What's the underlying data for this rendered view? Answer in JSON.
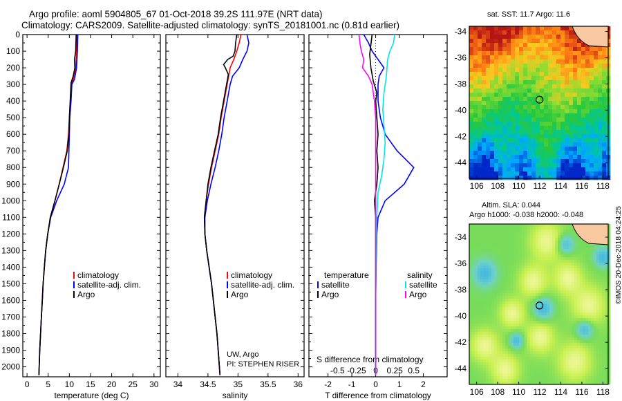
{
  "title_line1": "Argo profile: aoml 5904805_67 01-Oct-2018 39.2S 111.97E (NRT data)",
  "title_line2": "Climatology: CARS2009. Satellite-adjusted climatology: synTS_20181001.nc (0.81d earlier)",
  "sst_title": "sat. SST: 11.7 Argo: 11.6",
  "sla_title1": "Altim. SLA: 0.044",
  "sla_title2": "Argo h1000: -0.038 h2000: -0.048",
  "watermark": "©IMOS 20-Dec-2018 04:24:25",
  "colors": {
    "climatology": "#ff0000",
    "satellite": "#0000ff",
    "argo": "#000000",
    "sal_satellite": "#00e5ee",
    "sal_argo": "#ff00ff"
  },
  "chart_data": [
    {
      "type": "line",
      "name": "temperature_profile",
      "xlabel": "temperature (deg C)",
      "ylabel": "pressure",
      "xlim": [
        -1,
        31.5
      ],
      "ylim": [
        2060,
        0
      ],
      "xticks": [
        "0",
        "5",
        "10",
        "15",
        "20",
        "25",
        "30"
      ],
      "xtick_values": [
        0,
        5,
        10,
        15,
        20,
        25,
        30
      ],
      "yticks": [
        "0",
        "100",
        "200",
        "300",
        "400",
        "500",
        "600",
        "700",
        "800",
        "900",
        "1000",
        "1100",
        "1200",
        "1300",
        "1400",
        "1500",
        "1600",
        "1700",
        "1800",
        "1900",
        "2000"
      ],
      "legend": [
        "climatology",
        "satellite-adj. clim.",
        "Argo"
      ],
      "series": [
        {
          "name": "climatology",
          "color": "#ff0000",
          "points": [
            [
              11.8,
              0
            ],
            [
              11.7,
              100
            ],
            [
              11.5,
              200
            ],
            [
              10.9,
              270
            ],
            [
              10.4,
              300
            ],
            [
              10.2,
              400
            ],
            [
              10.0,
              500
            ],
            [
              9.8,
              600
            ],
            [
              9.4,
              700
            ],
            [
              8.5,
              800
            ],
            [
              7.6,
              900
            ],
            [
              6.6,
              1000
            ],
            [
              5.5,
              1100
            ],
            [
              4.9,
              1200
            ],
            [
              4.4,
              1300
            ],
            [
              4.1,
              1400
            ],
            [
              3.8,
              1500
            ],
            [
              3.6,
              1600
            ],
            [
              3.4,
              1700
            ],
            [
              3.2,
              1800
            ],
            [
              3.0,
              1900
            ],
            [
              2.8,
              2050
            ]
          ]
        },
        {
          "name": "satellite-adj. clim.",
          "color": "#0000ff",
          "points": [
            [
              12.0,
              0
            ],
            [
              11.9,
              100
            ],
            [
              11.7,
              200
            ],
            [
              11.2,
              270
            ],
            [
              10.6,
              300
            ],
            [
              10.4,
              400
            ],
            [
              10.1,
              500
            ],
            [
              10.0,
              600
            ],
            [
              9.9,
              700
            ],
            [
              9.8,
              800
            ],
            [
              8.8,
              900
            ],
            [
              7.0,
              1000
            ],
            [
              5.6,
              1100
            ],
            [
              4.9,
              1200
            ],
            [
              4.4,
              1300
            ],
            [
              4.1,
              1400
            ],
            [
              3.8,
              1500
            ],
            [
              3.6,
              1600
            ],
            [
              3.4,
              1700
            ],
            [
              3.2,
              1800
            ],
            [
              3.0,
              1900
            ],
            [
              2.8,
              2050
            ]
          ]
        },
        {
          "name": "Argo",
          "color": "#000000",
          "points": [
            [
              11.6,
              0
            ],
            [
              11.5,
              100
            ],
            [
              11.2,
              150
            ],
            [
              11.3,
              200
            ],
            [
              10.9,
              250
            ],
            [
              10.4,
              290
            ],
            [
              10.3,
              350
            ],
            [
              10.2,
              400
            ],
            [
              10.0,
              500
            ],
            [
              9.9,
              600
            ],
            [
              9.5,
              700
            ],
            [
              8.6,
              800
            ],
            [
              7.6,
              900
            ],
            [
              6.6,
              1000
            ],
            [
              5.5,
              1100
            ],
            [
              4.9,
              1200
            ],
            [
              4.4,
              1300
            ],
            [
              4.1,
              1400
            ],
            [
              3.8,
              1500
            ],
            [
              3.6,
              1600
            ],
            [
              3.4,
              1700
            ],
            [
              3.2,
              1800
            ],
            [
              3.0,
              1900
            ],
            [
              2.8,
              2050
            ]
          ]
        }
      ]
    },
    {
      "type": "line",
      "name": "salinity_profile",
      "xlabel": "salinity",
      "xlim": [
        33.8,
        36.1
      ],
      "ylim": [
        2060,
        0
      ],
      "xticks": [
        "34",
        "34.5",
        "35",
        "35.5",
        "36"
      ],
      "xtick_values": [
        34,
        34.5,
        35,
        35.5,
        36
      ],
      "legend": [
        "climatology",
        "satellite-adj. clim.",
        "Argo"
      ],
      "credit1": "UW, Argo",
      "credit2": "PI: STEPHEN RISER",
      "series": [
        {
          "name": "climatology",
          "color": "#ff0000",
          "points": [
            [
              35.05,
              0
            ],
            [
              35.02,
              50
            ],
            [
              34.98,
              100
            ],
            [
              34.93,
              150
            ],
            [
              34.87,
              200
            ],
            [
              34.82,
              300
            ],
            [
              34.77,
              400
            ],
            [
              34.72,
              500
            ],
            [
              34.68,
              600
            ],
            [
              34.62,
              700
            ],
            [
              34.56,
              800
            ],
            [
              34.51,
              900
            ],
            [
              34.47,
              1000
            ],
            [
              34.44,
              1100
            ],
            [
              34.45,
              1200
            ],
            [
              34.48,
              1300
            ],
            [
              34.52,
              1400
            ],
            [
              34.56,
              1500
            ],
            [
              34.59,
              1600
            ],
            [
              34.62,
              1700
            ],
            [
              34.65,
              1800
            ],
            [
              34.67,
              1900
            ],
            [
              34.7,
              2050
            ]
          ]
        },
        {
          "name": "satellite-adj. clim.",
          "color": "#0000ff",
          "points": [
            [
              35.15,
              0
            ],
            [
              35.18,
              50
            ],
            [
              35.15,
              100
            ],
            [
              35.08,
              150
            ],
            [
              35.02,
              200
            ],
            [
              34.91,
              250
            ],
            [
              34.87,
              300
            ],
            [
              34.82,
              400
            ],
            [
              34.77,
              500
            ],
            [
              34.73,
              600
            ],
            [
              34.68,
              700
            ],
            [
              34.62,
              800
            ],
            [
              34.55,
              900
            ],
            [
              34.49,
              1000
            ],
            [
              34.45,
              1100
            ],
            [
              34.45,
              1200
            ],
            [
              34.48,
              1300
            ],
            [
              34.52,
              1400
            ],
            [
              34.56,
              1500
            ],
            [
              34.59,
              1600
            ],
            [
              34.62,
              1700
            ],
            [
              34.65,
              1800
            ],
            [
              34.67,
              1900
            ],
            [
              34.7,
              2050
            ]
          ]
        },
        {
          "name": "Argo",
          "color": "#000000",
          "points": [
            [
              34.98,
              0
            ],
            [
              34.96,
              50
            ],
            [
              34.95,
              100
            ],
            [
              34.92,
              130
            ],
            [
              34.83,
              150
            ],
            [
              34.76,
              180
            ],
            [
              34.79,
              200
            ],
            [
              34.84,
              240
            ],
            [
              34.81,
              300
            ],
            [
              34.76,
              400
            ],
            [
              34.71,
              500
            ],
            [
              34.67,
              600
            ],
            [
              34.61,
              700
            ],
            [
              34.55,
              800
            ],
            [
              34.5,
              900
            ],
            [
              34.47,
              1000
            ],
            [
              34.44,
              1100
            ],
            [
              34.45,
              1200
            ],
            [
              34.48,
              1300
            ],
            [
              34.52,
              1400
            ],
            [
              34.56,
              1500
            ],
            [
              34.59,
              1600
            ],
            [
              34.62,
              1700
            ],
            [
              34.65,
              1800
            ],
            [
              34.67,
              1900
            ],
            [
              34.7,
              2050
            ]
          ]
        }
      ]
    },
    {
      "type": "line",
      "name": "difference_profile",
      "xlabel": "T difference from climatology",
      "xlabel_top": "S difference from climatology",
      "xlim": [
        -2.8,
        3.0
      ],
      "ylim": [
        2060,
        0
      ],
      "xticks": [
        "-2",
        "-1",
        "0",
        "1",
        "2"
      ],
      "xtick_values": [
        -2,
        -1,
        0,
        1,
        2
      ],
      "xticks_salinity": [
        "-0.5",
        "-0.25",
        "0",
        "0.25",
        "0.5"
      ],
      "xtick_salinity_values": [
        -1.6,
        -0.8,
        0,
        0.8,
        1.6
      ],
      "legend_left_title": "temperature",
      "legend_right_title": "salinity",
      "legend_left": [
        "satellite",
        "Argo"
      ],
      "legend_right": [
        "satellite",
        "Argo"
      ],
      "series": [
        {
          "name": "temperature satellite",
          "color": "#0000ff",
          "points": [
            [
              -0.5,
              0
            ],
            [
              -0.3,
              50
            ],
            [
              -0.15,
              100
            ],
            [
              0.1,
              150
            ],
            [
              0.35,
              200
            ],
            [
              0.15,
              250
            ],
            [
              0.1,
              300
            ],
            [
              0.1,
              400
            ],
            [
              0.2,
              500
            ],
            [
              0.4,
              600
            ],
            [
              0.9,
              700
            ],
            [
              1.6,
              800
            ],
            [
              1.2,
              900
            ],
            [
              0.4,
              1000
            ],
            [
              0.1,
              1100
            ],
            [
              0.05,
              1200
            ],
            [
              0.02,
              1400
            ],
            [
              0.0,
              1600
            ],
            [
              0.0,
              2050
            ]
          ]
        },
        {
          "name": "temperature Argo",
          "color": "#000000",
          "points": [
            [
              -0.15,
              0
            ],
            [
              -0.2,
              60
            ],
            [
              -0.25,
              120
            ],
            [
              -0.2,
              200
            ],
            [
              -0.1,
              280
            ],
            [
              0.05,
              350
            ],
            [
              0.0,
              400
            ],
            [
              0.05,
              500
            ],
            [
              0.1,
              600
            ],
            [
              0.05,
              700
            ],
            [
              0.1,
              800
            ],
            [
              0.05,
              900
            ],
            [
              -0.05,
              1000
            ],
            [
              0.0,
              1100
            ],
            [
              0.0,
              2050
            ]
          ]
        },
        {
          "name": "salinity satellite",
          "color": "#00e5ee",
          "points": [
            [
              0.8,
              0
            ],
            [
              0.75,
              50
            ],
            [
              0.6,
              100
            ],
            [
              0.5,
              150
            ],
            [
              0.45,
              250
            ],
            [
              0.35,
              350
            ],
            [
              0.3,
              450
            ],
            [
              0.35,
              550
            ],
            [
              0.4,
              650
            ],
            [
              0.35,
              750
            ],
            [
              0.25,
              850
            ],
            [
              0.1,
              950
            ],
            [
              0.05,
              1100
            ],
            [
              0.02,
              1300
            ],
            [
              0.0,
              1600
            ],
            [
              0.0,
              2050
            ]
          ]
        },
        {
          "name": "salinity Argo",
          "color": "#ff00ff",
          "points": [
            [
              -0.7,
              0
            ],
            [
              -0.65,
              60
            ],
            [
              -0.6,
              100
            ],
            [
              -0.5,
              150
            ],
            [
              -0.55,
              200
            ],
            [
              -0.3,
              250
            ],
            [
              -0.15,
              300
            ],
            [
              -0.05,
              400
            ],
            [
              0.0,
              500
            ],
            [
              0.0,
              2050
            ]
          ]
        }
      ]
    },
    {
      "type": "heatmap",
      "name": "sst_map",
      "title": "sat. SST: 11.7 Argo: 11.6",
      "xlim": [
        105.3,
        118.5
      ],
      "ylim": [
        -45.2,
        -33.6
      ],
      "xticks": [
        "106",
        "108",
        "110",
        "112",
        "114",
        "116",
        "118"
      ],
      "xtick_values": [
        106,
        108,
        110,
        112,
        114,
        116,
        118
      ],
      "yticks": [
        "-34",
        "-36",
        "-38",
        "-40",
        "-42",
        "-44"
      ],
      "ytick_values": [
        -34,
        -36,
        -38,
        -40,
        -42,
        -44
      ],
      "marker": {
        "lon": 111.97,
        "lat": -39.2
      }
    },
    {
      "type": "heatmap",
      "name": "sla_map",
      "title": "Altim. SLA: 0.044",
      "xlim": [
        105.3,
        118.5
      ],
      "ylim": [
        -45.2,
        -33.0
      ],
      "xticks": [
        "106",
        "108",
        "110",
        "112",
        "114",
        "116",
        "118"
      ],
      "xtick_values": [
        106,
        108,
        110,
        112,
        114,
        116,
        118
      ],
      "yticks": [
        "-34",
        "-36",
        "-38",
        "-40",
        "-42",
        "-44"
      ],
      "ytick_values": [
        -34,
        -36,
        -38,
        -40,
        -42,
        -44
      ],
      "marker": {
        "lon": 111.97,
        "lat": -39.2
      }
    }
  ]
}
